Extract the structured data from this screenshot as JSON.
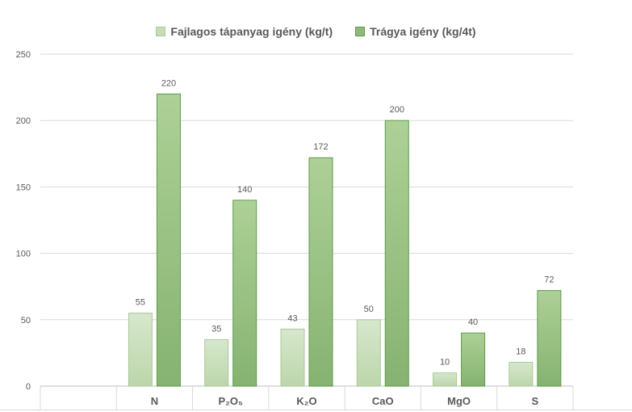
{
  "chart_data": {
    "type": "bar",
    "categories": [
      "",
      "N",
      "P₂O₅",
      "K₂O",
      "CaO",
      "MgO",
      "S"
    ],
    "series": [
      {
        "name": "Fajlagos tápanyag igény (kg/t)",
        "values": [
          null,
          55,
          35,
          43,
          50,
          10,
          18
        ],
        "color": "#c9dfbb"
      },
      {
        "name": "Trágya igény (kg/4t)",
        "values": [
          null,
          220,
          140,
          172,
          200,
          40,
          72
        ],
        "color": "#94bd82"
      }
    ],
    "data_labels": true,
    "ylim": [
      0,
      250
    ],
    "yticks": [
      0,
      50,
      100,
      150,
      200,
      250
    ],
    "grid": true,
    "legend": "top-center",
    "title": "",
    "xlabel": "",
    "ylabel": ""
  }
}
